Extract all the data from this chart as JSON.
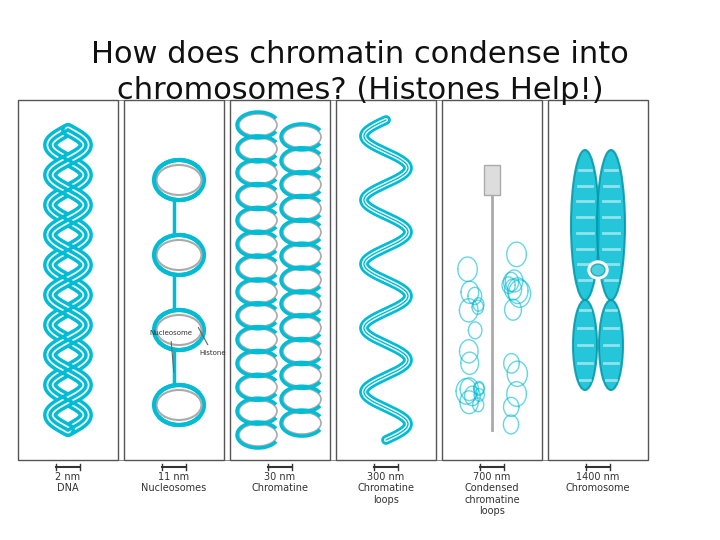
{
  "title_line1": "How does chromatin condense into",
  "title_line2": "chromosomes? (Histones Help!)",
  "title_fontsize": 22,
  "bg_color": "#ffffff",
  "panel_border_color": "#555555",
  "teal": "#00BCD4",
  "teal_light": "#4DD0E1",
  "teal_dark": "#0097A7",
  "panels": [
    {
      "label_nm": "2 nm",
      "label_name": "DNA",
      "label_name2": ""
    },
    {
      "label_nm": "11 nm",
      "label_name": "Nucleosomes",
      "label_name2": ""
    },
    {
      "label_nm": "30 nm",
      "label_name": "Chromatine",
      "label_name2": ""
    },
    {
      "label_nm": "300 nm",
      "label_name": "Chromatine",
      "label_name2": "loops"
    },
    {
      "label_nm": "700 nm",
      "label_name": "Condensed",
      "label_name2": "chromatine\nloops"
    },
    {
      "label_nm": "1400 nm",
      "label_name": "Chromosome",
      "label_name2": ""
    }
  ],
  "connector_color": "#888888",
  "nucleosome_label": "Nucleosome",
  "histone_label": "Histone"
}
